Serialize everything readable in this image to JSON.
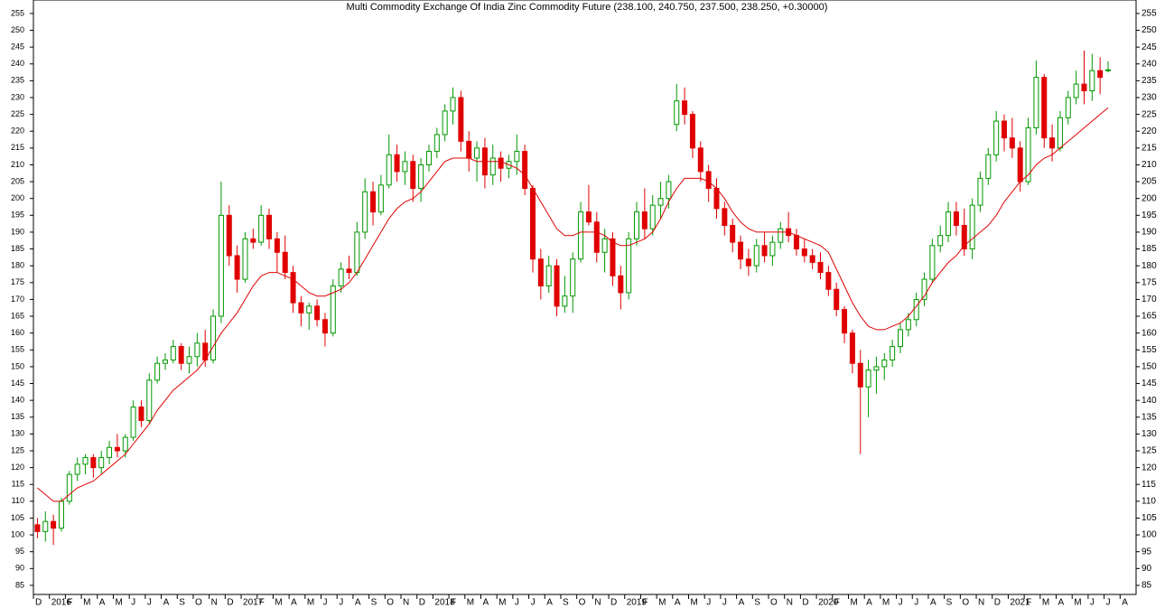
{
  "chart_data": {
    "type": "candlestick",
    "title": "Multi Commodity Exchange Of India Zinc Commodity Future (238.100, 240.750, 237.500, 238.250, +0.30000)",
    "categories": [
      "D",
      null,
      "2016",
      null,
      "F",
      null,
      "M",
      null,
      "A",
      null,
      "M",
      null,
      "J",
      null,
      "J",
      null,
      "A",
      null,
      "S",
      null,
      "O",
      null,
      "N",
      null,
      "D",
      null,
      "2017",
      null,
      "F",
      null,
      "M",
      null,
      "A",
      null,
      "M",
      null,
      "J",
      null,
      "J",
      null,
      "A",
      null,
      "S",
      null,
      "O",
      null,
      "N",
      null,
      "D",
      null,
      "2018",
      null,
      "F",
      null,
      "M",
      null,
      "A",
      null,
      "M",
      null,
      "J",
      null,
      "J",
      null,
      "A",
      null,
      "S",
      null,
      "O",
      null,
      "N",
      null,
      "D",
      null,
      "2019",
      null,
      "F",
      null,
      "M",
      null,
      "A",
      null,
      "M",
      null,
      "J",
      null,
      "J",
      null,
      "A",
      null,
      "S",
      null,
      "O",
      null,
      "N",
      null,
      "D",
      null,
      "2020",
      null,
      "F",
      null,
      "M",
      null,
      "A",
      null,
      "M",
      null,
      "J",
      null,
      "J",
      null,
      "A",
      null,
      "S",
      null,
      "O",
      null,
      "N",
      null,
      "D",
      null,
      "2021",
      null,
      "F",
      null,
      "M",
      null,
      "A",
      null,
      "M",
      null,
      "J",
      null,
      "J",
      null,
      "A",
      null
    ],
    "open": [
      103,
      101,
      104,
      102,
      110,
      118,
      121,
      123,
      120,
      123,
      126,
      125,
      129,
      138,
      134,
      146,
      151,
      152,
      156,
      151,
      153,
      157,
      152,
      165,
      195,
      183,
      176,
      188,
      187,
      195,
      188,
      184,
      178,
      169,
      166,
      168,
      164,
      160,
      174,
      179,
      178,
      190,
      202,
      196,
      204,
      213,
      208,
      211,
      203,
      210,
      214,
      219,
      226,
      230,
      217,
      212,
      215,
      207,
      212,
      209,
      211,
      214,
      203,
      182,
      174,
      180,
      168,
      171,
      182,
      196,
      193,
      184,
      188,
      177,
      172,
      188,
      196,
      191,
      198,
      200,
      222,
      229,
      225,
      215,
      208,
      203,
      197,
      192,
      187,
      182,
      180,
      186,
      183,
      187,
      191,
      189,
      185,
      183,
      181,
      178,
      173,
      167,
      160,
      151,
      144,
      149,
      150,
      152,
      156,
      161,
      164,
      170,
      176,
      186,
      189,
      196,
      192,
      185,
      198,
      206,
      213,
      223,
      218,
      215,
      205,
      221,
      236,
      218,
      215,
      224,
      230,
      234,
      232,
      238,
      238.1,
      null,
      null,
      null
    ],
    "high": [
      105,
      107,
      106,
      111,
      119,
      123,
      124,
      124,
      125,
      128,
      130,
      130,
      140,
      140,
      148,
      153,
      154,
      158,
      157,
      156,
      160,
      161,
      167,
      205,
      198,
      186,
      190,
      191,
      198,
      197,
      190,
      189,
      180,
      171,
      169,
      170,
      166,
      176,
      181,
      183,
      193,
      206,
      205,
      207,
      219,
      216,
      214,
      213,
      212,
      216,
      221,
      228,
      233,
      232,
      220,
      217,
      218,
      216,
      214,
      213,
      219,
      216,
      204,
      185,
      183,
      182,
      177,
      184,
      199,
      204,
      196,
      191,
      190,
      180,
      190,
      199,
      203,
      201,
      205,
      207,
      234,
      233,
      226,
      217,
      210,
      206,
      199,
      194,
      189,
      185,
      188,
      190,
      189,
      193,
      196,
      191,
      188,
      185,
      184,
      180,
      175,
      168,
      161,
      155,
      152,
      153,
      154,
      158,
      163,
      166,
      172,
      178,
      188,
      192,
      199,
      199,
      197,
      200,
      208,
      215,
      226,
      225,
      224,
      217,
      224,
      241,
      237,
      222,
      226,
      232,
      238,
      244,
      243,
      242,
      240.75,
      null,
      null,
      null
    ],
    "low": [
      99,
      98,
      97,
      101,
      109,
      116,
      118,
      117,
      118,
      121,
      123,
      123,
      128,
      132,
      133,
      145,
      149,
      151,
      149,
      148,
      150,
      150,
      151,
      163,
      180,
      172,
      175,
      185,
      186,
      185,
      178,
      176,
      166,
      162,
      161,
      162,
      156,
      159,
      172,
      176,
      177,
      188,
      192,
      195,
      203,
      205,
      204,
      199,
      199,
      208,
      212,
      217,
      222,
      214,
      208,
      205,
      203,
      204,
      205,
      206,
      207,
      201,
      178,
      170,
      172,
      165,
      166,
      166,
      181,
      192,
      181,
      178,
      174,
      167,
      170,
      186,
      188,
      189,
      194,
      197,
      220,
      222,
      212,
      205,
      199,
      194,
      189,
      184,
      179,
      177,
      178,
      181,
      180,
      185,
      187,
      183,
      181,
      179,
      176,
      171,
      165,
      157,
      148,
      124,
      135,
      142,
      146,
      150,
      154,
      159,
      162,
      168,
      175,
      184,
      187,
      189,
      183,
      182,
      196,
      204,
      211,
      214,
      212,
      202,
      204,
      219,
      215,
      211,
      214,
      222,
      228,
      228,
      229,
      231,
      237.5,
      null,
      null,
      null
    ],
    "close": [
      101,
      104,
      102,
      110,
      118,
      121,
      123,
      120,
      123,
      126,
      125,
      129,
      138,
      134,
      146,
      151,
      152,
      156,
      151,
      153,
      157,
      152,
      165,
      195,
      183,
      176,
      188,
      187,
      195,
      188,
      184,
      178,
      169,
      166,
      168,
      164,
      160,
      174,
      179,
      178,
      190,
      202,
      196,
      204,
      213,
      208,
      211,
      203,
      210,
      214,
      219,
      226,
      230,
      217,
      212,
      215,
      207,
      212,
      209,
      211,
      214,
      203,
      182,
      174,
      180,
      168,
      171,
      182,
      196,
      193,
      184,
      188,
      177,
      172,
      188,
      196,
      191,
      198,
      200,
      205,
      229,
      225,
      215,
      208,
      203,
      197,
      192,
      187,
      182,
      180,
      186,
      183,
      187,
      191,
      189,
      185,
      183,
      181,
      178,
      173,
      167,
      160,
      151,
      144,
      149,
      150,
      152,
      156,
      161,
      164,
      170,
      176,
      186,
      189,
      196,
      192,
      185,
      198,
      206,
      213,
      223,
      218,
      215,
      205,
      221,
      236,
      218,
      215,
      224,
      230,
      234,
      232,
      238,
      236,
      238.25,
      null,
      null,
      null
    ],
    "up_color": "#009900",
    "down_color": "#e00000",
    "moving_average": {
      "color": "#e00000",
      "values": [
        114,
        112,
        110,
        110,
        112,
        114,
        115,
        116,
        118,
        120,
        122,
        124,
        127,
        130,
        133,
        137,
        140,
        143,
        145,
        147,
        149,
        152,
        156,
        160,
        163,
        166,
        170,
        174,
        177,
        178,
        178,
        177,
        176,
        174,
        172,
        171,
        171,
        172,
        173,
        175,
        178,
        182,
        186,
        190,
        194,
        197,
        199,
        200,
        202,
        205,
        208,
        211,
        212,
        212,
        212,
        211,
        211,
        211,
        211,
        210,
        209,
        207,
        203,
        199,
        195,
        191,
        189,
        189,
        190,
        190,
        190,
        189,
        187,
        186,
        186,
        187,
        188,
        190,
        194,
        199,
        203,
        206,
        206,
        206,
        205,
        203,
        200,
        196,
        193,
        191,
        190,
        190,
        190,
        190,
        190,
        189,
        188,
        187,
        186,
        184,
        179,
        174,
        169,
        165,
        162,
        161,
        161,
        162,
        163,
        165,
        168,
        171,
        175,
        178,
        181,
        183,
        186,
        188,
        190,
        192,
        195,
        199,
        202,
        205,
        207,
        210,
        212,
        213,
        215,
        217,
        219,
        221,
        223,
        225,
        227,
        null,
        null,
        null
      ]
    },
    "ylim": [
      82.3,
      259
    ],
    "yticks": [
      85,
      90,
      95,
      100,
      105,
      110,
      115,
      120,
      125,
      130,
      135,
      140,
      145,
      150,
      155,
      160,
      165,
      170,
      175,
      180,
      185,
      190,
      195,
      200,
      205,
      210,
      215,
      220,
      225,
      230,
      235,
      240,
      245,
      250,
      255
    ]
  }
}
